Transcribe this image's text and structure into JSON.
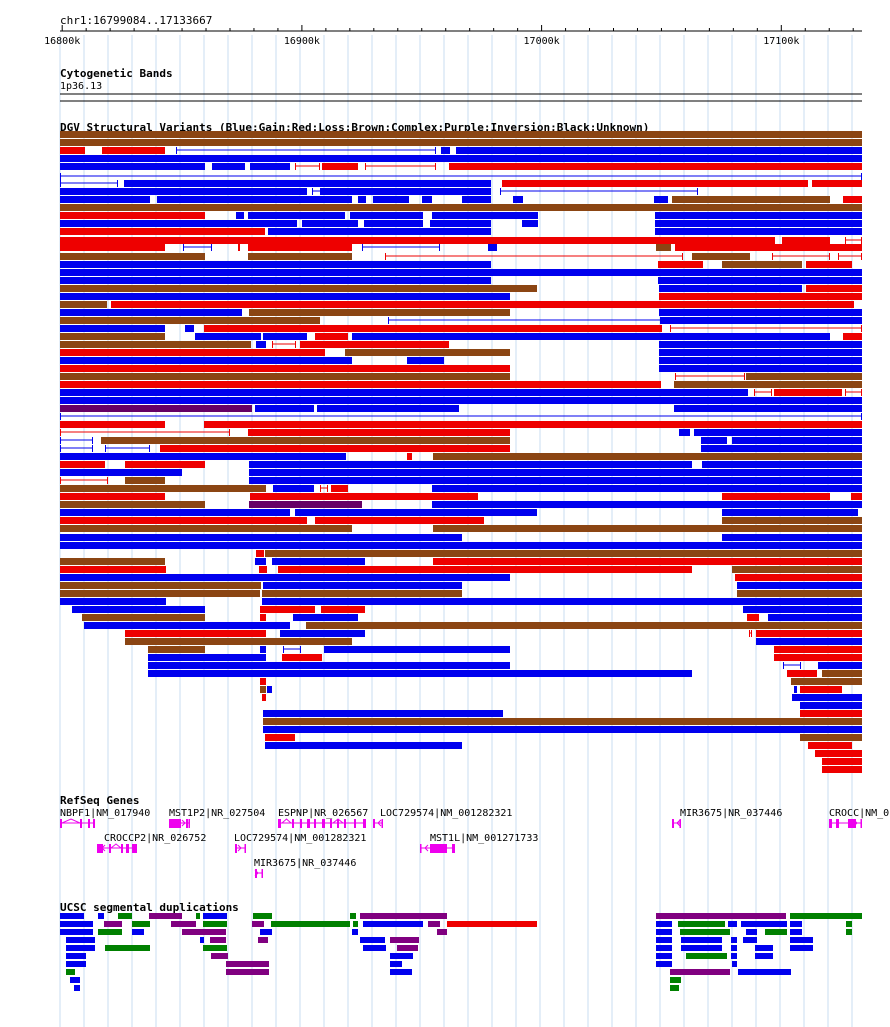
{
  "region": "chr1:16799084..17133667",
  "ruler": {
    "range": [
      16799084,
      17133667
    ],
    "ticks": [
      {
        "label": "16800k",
        "pos": 16800000
      },
      {
        "label": "16900k",
        "pos": 16900000
      },
      {
        "label": "17000k",
        "pos": 17000000
      },
      {
        "label": "17100k",
        "pos": 17100000
      }
    ]
  },
  "tracks": {
    "cytoband": {
      "title": "Cytogenetic Bands",
      "band": "1p36.13"
    },
    "dgv": {
      "title": "DGV Structural Variants (Blue:Gain;Red:Loss;Brown:Complex;Purple:Inversion;Black:Unknown)",
      "legend": {
        "gain": "#0000ee",
        "loss": "#ee0000",
        "complex": "#8b4513",
        "inversion": "#660066",
        "unknown": "#000000"
      }
    },
    "refseq": {
      "title": "RefSeq Genes",
      "color": "#ee00ee",
      "genes": [
        {
          "label": "NBPF1|NM_017940"
        },
        {
          "label": "MST1P2|NR_027504"
        },
        {
          "label": "ESPNP|NR_026567"
        },
        {
          "label": "LOC729574|NM_001282321"
        },
        {
          "label": "MIR3675|NR_037446"
        },
        {
          "label": "CROCC|NM_0"
        },
        {
          "label": "CROCCP2|NR_026752"
        },
        {
          "label": "LOC729574|NM_001282321"
        },
        {
          "label": "MST1L|NM_001271733"
        },
        {
          "label": "MIR3675|NR_037446"
        }
      ]
    },
    "segdups": {
      "title": "UCSC segmental duplications",
      "legend": {
        "blue": "#0000ee",
        "green": "#008000",
        "purple": "#800080",
        "red": "#ee0000"
      }
    }
  }
}
